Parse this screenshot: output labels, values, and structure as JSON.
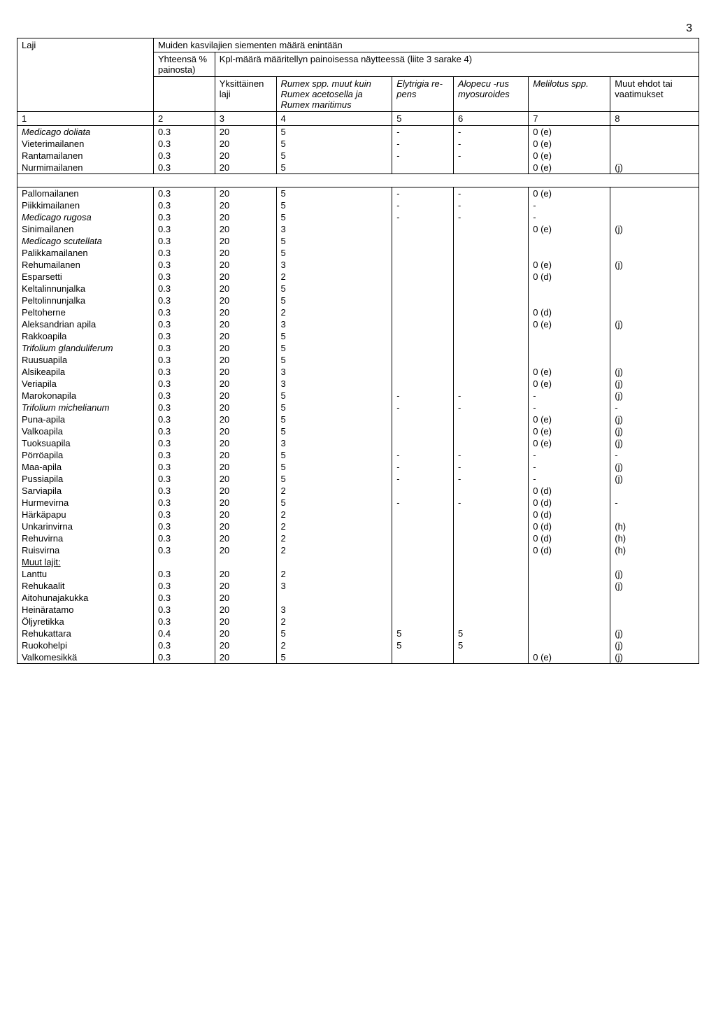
{
  "page_number": "3",
  "header": {
    "laji": "Laji",
    "main": "Muiden kasvilajien siementen määrä enintään",
    "yhteensa": "Yhteensä % painosta)",
    "kpl": "Kpl-määrä määritellyn painoisessa näytteessä (liite 3 sarake 4)",
    "cols": {
      "c3": "Yksit­täinen laji",
      "c4": "Rumex spp. muut kuin Rumex aceto­sella ja Rumex maritimus",
      "c5": "Elytri­gia re­pens",
      "c6": "Alopecu -rus myosu­roides",
      "c7": "Melilotus spp.",
      "c8": "Muut ehdot tai vaati­mukset"
    },
    "nums": [
      "1",
      "2",
      "3",
      "4",
      "5",
      "6",
      "7",
      "8"
    ]
  },
  "section1": [
    {
      "name": "Medicago doliata",
      "italic": true,
      "c2": "0.3",
      "c3": "20",
      "c4": "5",
      "c5": "-",
      "c6": "-",
      "c7": "0 (e)",
      "c8": ""
    },
    {
      "name": "Vieterimailanen",
      "c2": "0.3",
      "c3": "20",
      "c4": "5",
      "c5": "-",
      "c6": "-",
      "c7": "0 (e)",
      "c8": ""
    },
    {
      "name": "Rantamailanen",
      "c2": "0.3",
      "c3": "20",
      "c4": "5",
      "c5": "-",
      "c6": "-",
      "c7": "0 (e)",
      "c8": ""
    },
    {
      "name": "Nurmimailanen",
      "c2": "0.3",
      "c3": "20",
      "c4": "5",
      "c5": "",
      "c6": "",
      "c7": "0 (e)",
      "c8": "(j)"
    }
  ],
  "section2": [
    {
      "name": "Pallomailanen",
      "c2": "0.3",
      "c3": "20",
      "c4": "5",
      "c5": "-",
      "c6": "-",
      "c7": "0 (e)",
      "c8": ""
    },
    {
      "name": "Piikkimailanen",
      "c2": "0.3",
      "c3": "20",
      "c4": "5",
      "c5": "-",
      "c6": "-",
      "c7": "-",
      "c8": ""
    },
    {
      "name": "Medicago rugosa",
      "italic": true,
      "c2": "0.3",
      "c3": "20",
      "c4": "5",
      "c5": "-",
      "c6": "-",
      "c7": "-",
      "c8": ""
    },
    {
      "name": "Sinimailanen",
      "c2": "0.3",
      "c3": "20",
      "c4": "3",
      "c5": "",
      "c6": "",
      "c7": "0 (e)",
      "c8": "(j)"
    },
    {
      "name": "Medicago scutellata",
      "italic": true,
      "c2": "0.3",
      "c3": "20",
      "c4": "5",
      "c5": "",
      "c6": "",
      "c7": "",
      "c8": ""
    },
    {
      "name": "Palikkamailanen",
      "c2": "0.3",
      "c3": "20",
      "c4": "5",
      "c5": "",
      "c6": "",
      "c7": "",
      "c8": ""
    },
    {
      "name": "Rehumailanen",
      "c2": "0.3",
      "c3": "20",
      "c4": "3",
      "c5": "",
      "c6": "",
      "c7": "0 (e)",
      "c8": "(j)"
    },
    {
      "name": "Esparsetti",
      "c2": "0.3",
      "c3": "20",
      "c4": "2",
      "c5": "",
      "c6": "",
      "c7": "0 (d)",
      "c8": ""
    },
    {
      "name": "Keltalinnunjalka",
      "c2": "0.3",
      "c3": "20",
      "c4": "5",
      "c5": "",
      "c6": "",
      "c7": "",
      "c8": ""
    },
    {
      "name": "Peltolinnunjalka",
      "c2": "0.3",
      "c3": "20",
      "c4": "5",
      "c5": "",
      "c6": "",
      "c7": "",
      "c8": ""
    },
    {
      "name": "Peltoherne",
      "c2": "0.3",
      "c3": "20",
      "c4": "2",
      "c5": "",
      "c6": "",
      "c7": "0 (d)",
      "c8": ""
    },
    {
      "name": "Aleksandrian apila",
      "c2": "0.3",
      "c3": "20",
      "c4": "3",
      "c5": "",
      "c6": "",
      "c7": "0 (e)",
      "c8": "(j)"
    },
    {
      "name": "Rakkoapila",
      "c2": "0.3",
      "c3": "20",
      "c4": "5",
      "c5": "",
      "c6": "",
      "c7": "",
      "c8": ""
    },
    {
      "name": "Trifolium glanduliferum",
      "italic": true,
      "c2": "0.3",
      "c3": "20",
      "c4": "5",
      "c5": "",
      "c6": "",
      "c7": "",
      "c8": ""
    },
    {
      "name": "Ruusuapila",
      "c2": "0.3",
      "c3": "20",
      "c4": "5",
      "c5": "",
      "c6": "",
      "c7": "",
      "c8": ""
    },
    {
      "name": "Alsikeapila",
      "c2": "0.3",
      "c3": "20",
      "c4": "3",
      "c5": "",
      "c6": "",
      "c7": "0 (e)",
      "c8": "(j)"
    },
    {
      "name": "Veriapila",
      "c2": "0.3",
      "c3": "20",
      "c4": "3",
      "c5": "",
      "c6": "",
      "c7": "0 (e)",
      "c8": "(j)"
    },
    {
      "name": "Marokonapila",
      "c2": "0.3",
      "c3": "20",
      "c4": "5",
      "c5": "-",
      "c6": "-",
      "c7": "-",
      "c8": "(j)"
    },
    {
      "name": "Trifolium michelianum",
      "italic": true,
      "c2": "0.3",
      "c3": "20",
      "c4": "5",
      "c5": "-",
      "c6": "-",
      "c7": "-",
      "c8": "-"
    },
    {
      "name": "Puna-apila",
      "c2": "0.3",
      "c3": "20",
      "c4": "5",
      "c5": "",
      "c6": "",
      "c7": "0 (e)",
      "c8": "(j)"
    },
    {
      "name": "Valkoapila",
      "c2": "0.3",
      "c3": "20",
      "c4": "5",
      "c5": "",
      "c6": "",
      "c7": "0 (e)",
      "c8": "(j)"
    },
    {
      "name": "Tuoksuapila",
      "c2": "0.3",
      "c3": "20",
      "c4": "3",
      "c5": "",
      "c6": "",
      "c7": "0 (e)",
      "c8": "(j)"
    },
    {
      "name": "Pörröapila",
      "c2": "0.3",
      "c3": "20",
      "c4": "5",
      "c5": "-",
      "c6": "-",
      "c7": "-",
      "c8": "-"
    },
    {
      "name": "Maa-apila",
      "c2": "0.3",
      "c3": "20",
      "c4": "5",
      "c5": "-",
      "c6": "-",
      "c7": "-",
      "c8": "(j)"
    },
    {
      "name": "Pussiapila",
      "c2": "0.3",
      "c3": "20",
      "c4": "5",
      "c5": "-",
      "c6": "-",
      "c7": "-",
      "c8": "(j)"
    },
    {
      "name": "Sarviapila",
      "c2": "0.3",
      "c3": "20",
      "c4": "2",
      "c5": "",
      "c6": "",
      "c7": "0 (d)",
      "c8": ""
    },
    {
      "name": "Hurmevirna",
      "c2": "0.3",
      "c3": "20",
      "c4": "5",
      "c5": "-",
      "c6": "-",
      "c7": "0 (d)",
      "c8": "-"
    },
    {
      "name": "Härkäpapu",
      "c2": "0.3",
      "c3": "20",
      "c4": "2",
      "c5": "",
      "c6": "",
      "c7": "0 (d)",
      "c8": ""
    },
    {
      "name": "Unkarinvirna",
      "c2": "0.3",
      "c3": "20",
      "c4": "2",
      "c5": "",
      "c6": "",
      "c7": "0 (d)",
      "c8": "(h)"
    },
    {
      "name": "Rehuvirna",
      "c2": "0.3",
      "c3": "20",
      "c4": "2",
      "c5": "",
      "c6": "",
      "c7": "0 (d)",
      "c8": "(h)"
    },
    {
      "name": "Ruisvirna",
      "c2": "0.3",
      "c3": "20",
      "c4": "2",
      "c5": "",
      "c6": "",
      "c7": "0 (d)",
      "c8": "(h)"
    },
    {
      "name": "Muut lajit:",
      "underline": true,
      "c2": "",
      "c3": "",
      "c4": "",
      "c5": "",
      "c6": "",
      "c7": "",
      "c8": ""
    },
    {
      "name": "Lanttu",
      "c2": "0.3",
      "c3": "20",
      "c4": "2",
      "c5": "",
      "c6": "",
      "c7": "",
      "c8": "(j)"
    },
    {
      "name": "Rehukaalit",
      "c2": "0.3",
      "c3": "20",
      "c4": "3",
      "c5": "",
      "c6": "",
      "c7": "",
      "c8": "(j)"
    },
    {
      "name": "Aitohunajakukka",
      "c2": "0.3",
      "c3": "20",
      "c4": "",
      "c5": "",
      "c6": "",
      "c7": "",
      "c8": ""
    },
    {
      "name": "Heinäratamo",
      "c2": "0.3",
      "c3": "20",
      "c4": "3",
      "c5": "",
      "c6": "",
      "c7": "",
      "c8": ""
    },
    {
      "name": "Öljyretikka",
      "c2": "0.3",
      "c3": "20",
      "c4": "2",
      "c5": "",
      "c6": "",
      "c7": "",
      "c8": ""
    },
    {
      "name": "Rehukattara",
      "c2": "0.4",
      "c3": "20",
      "c4": "5",
      "c5": "5",
      "c6": "5",
      "c7": "",
      "c8": "(j)"
    },
    {
      "name": "Ruokohelpi",
      "c2": "0.3",
      "c3": "20",
      "c4": "2",
      "c5": "5",
      "c6": "5",
      "c7": "",
      "c8": "(j)"
    },
    {
      "name": "Valkomesikkä",
      "c2": "0.3",
      "c3": "20",
      "c4": "5",
      "c5": "",
      "c6": "",
      "c7": "0 (e)",
      "c8": "(j)"
    }
  ]
}
